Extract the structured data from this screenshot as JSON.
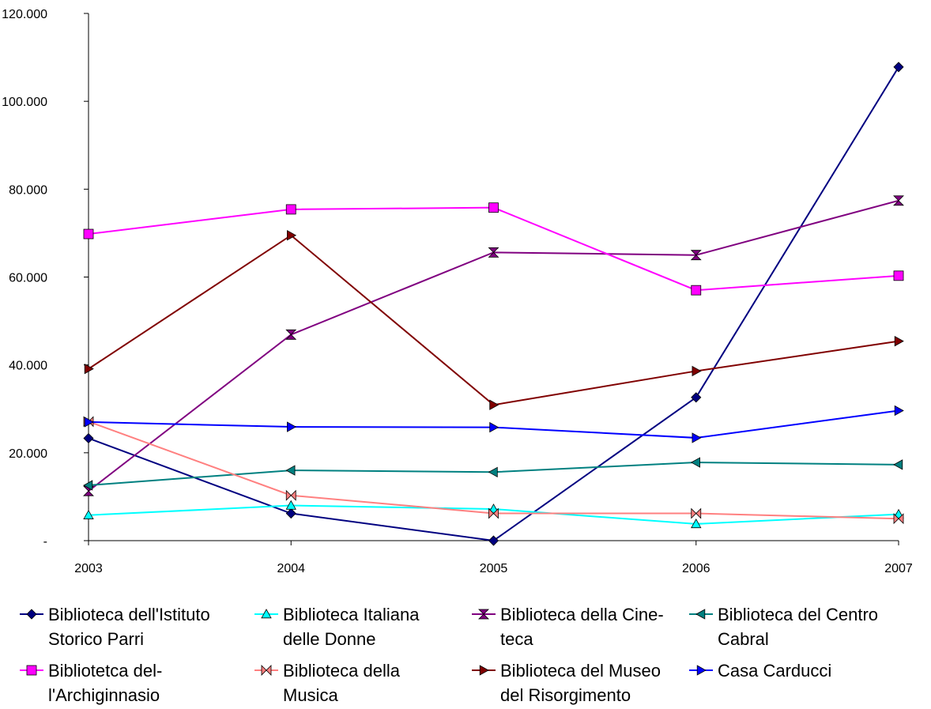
{
  "chart_data": {
    "type": "line",
    "title": "",
    "xlabel": "",
    "ylabel": "",
    "x": [
      "2003",
      "2004",
      "2005",
      "2006",
      "2007"
    ],
    "ylim": [
      0,
      120000
    ],
    "yticks": [
      0,
      20000,
      40000,
      60000,
      80000,
      100000,
      120000
    ],
    "ytick_labels": [
      "-",
      "20.000",
      "40.000",
      "60.000",
      "80.000",
      "100.000",
      "120.000"
    ],
    "grid": false,
    "legend_position": "bottom",
    "series": [
      {
        "name_lines": [
          "Biblioteca dell'Istituto",
          "Storico Parri"
        ],
        "color": "#000080",
        "marker": "diamond",
        "values": [
          23300,
          6200,
          0,
          32600,
          107800
        ]
      },
      {
        "name_lines": [
          "Biblioteca Italiana",
          "delle Donne"
        ],
        "color": "#00ffff",
        "marker": "triangle-up",
        "values": [
          5800,
          8000,
          7200,
          3800,
          6000
        ]
      },
      {
        "name_lines": [
          "Biblioteca della Cine-",
          "teca"
        ],
        "color": "#800080",
        "marker": "hourglass",
        "values": [
          11300,
          46900,
          65600,
          65000,
          77400
        ]
      },
      {
        "name_lines": [
          "Biblioteca del Centro",
          "Cabral"
        ],
        "color": "#008080",
        "marker": "triangle-left",
        "values": [
          12600,
          16000,
          15600,
          17800,
          17300
        ]
      },
      {
        "name_lines": [
          "Bibliotetca del-",
          "l'Archiginnasio"
        ],
        "color": "#ff00ff",
        "marker": "square",
        "values": [
          69800,
          75400,
          75800,
          57000,
          60300
        ]
      },
      {
        "name_lines": [
          "Biblioteca della",
          "Musica"
        ],
        "color": "#ff8080",
        "marker": "bowtie",
        "values": [
          27100,
          10300,
          6200,
          6200,
          5000
        ]
      },
      {
        "name_lines": [
          "Biblioteca del Museo",
          "del Risorgimento"
        ],
        "color": "#800000",
        "marker": "triangle-right",
        "values": [
          39100,
          69500,
          30900,
          38600,
          45400
        ]
      },
      {
        "name_lines": [
          "Casa Carducci"
        ],
        "color": "#0000ff",
        "marker": "triangle-right",
        "values": [
          27000,
          25900,
          25800,
          23400,
          29600
        ]
      }
    ]
  }
}
